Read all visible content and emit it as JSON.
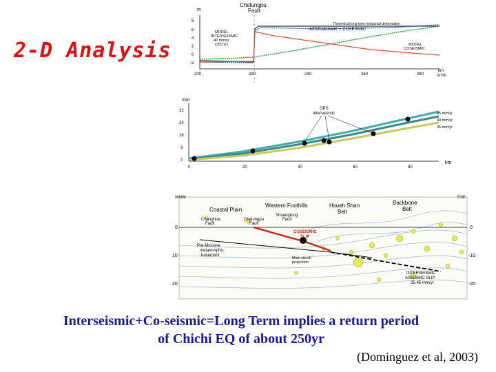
{
  "title": "2-D Analysis",
  "caption_line1": "Interseismic+Co-seismic=Long Term implies a return period",
  "caption_line2": "of Chichi EQ of about 250yr",
  "citation": "(Dominguez et al, 2003)",
  "top_panel": {
    "yunit": "m",
    "fault_label": [
      "Chelungpu",
      "Fault"
    ],
    "legend_line1": "INTERSEISMIC + COSEISMIC",
    "legend_line2": "Theoretical long term horizontal deformation",
    "model_inter": [
      "MODEL",
      "INTERSEISMIC",
      "40 mm/yr",
      "(250 yr)"
    ],
    "model_co": [
      "MODEL",
      "COSEISMIC"
    ],
    "xunit": [
      "km",
      "(UTM)"
    ],
    "yticks": [
      "8",
      "6",
      "4",
      "2",
      "0",
      "-2"
    ],
    "xticks": [
      "200",
      "220",
      "240",
      "260",
      "280"
    ]
  },
  "mid_panel": {
    "yunit": "mm",
    "gps_label": [
      "GPS",
      "Interseismic"
    ],
    "rates": [
      "45 mm/yr",
      "40 mm/yr",
      "35 mm/yr"
    ],
    "xunit": "km",
    "yticks": [
      "32",
      "24",
      "16",
      "8",
      "0"
    ],
    "xticks": [
      "0",
      "20",
      "40",
      "60",
      "80"
    ]
  },
  "section": {
    "wnw": "WNW",
    "ese": "ESE",
    "coastal_plain": "Coastal Plain",
    "western_foothills": "Western Foothills",
    "hsueh_shan": [
      "Hsueh Shan",
      "Belt"
    ],
    "backbone": [
      "Backbone",
      "Belt"
    ],
    "changhua": [
      "Changhua",
      "Fault"
    ],
    "chelungpu": [
      "Chelungpu",
      "Fault"
    ],
    "shuangtung": [
      "Shuangtung",
      "Fault"
    ],
    "coseismic_slip": [
      "COSEISMIC",
      "SLIP"
    ],
    "basement": [
      "Pre-Miocene",
      "metamorphic",
      "basement"
    ],
    "mainshock": [
      "Main shock",
      "projection"
    ],
    "aseismic": [
      "INTERSEISMIC",
      "ASEISMIC SLIP",
      "35-45 mm/yr"
    ],
    "depth_left": [
      "0",
      "10",
      "20"
    ],
    "depth_right": [
      "0",
      "-10",
      "-20"
    ]
  }
}
